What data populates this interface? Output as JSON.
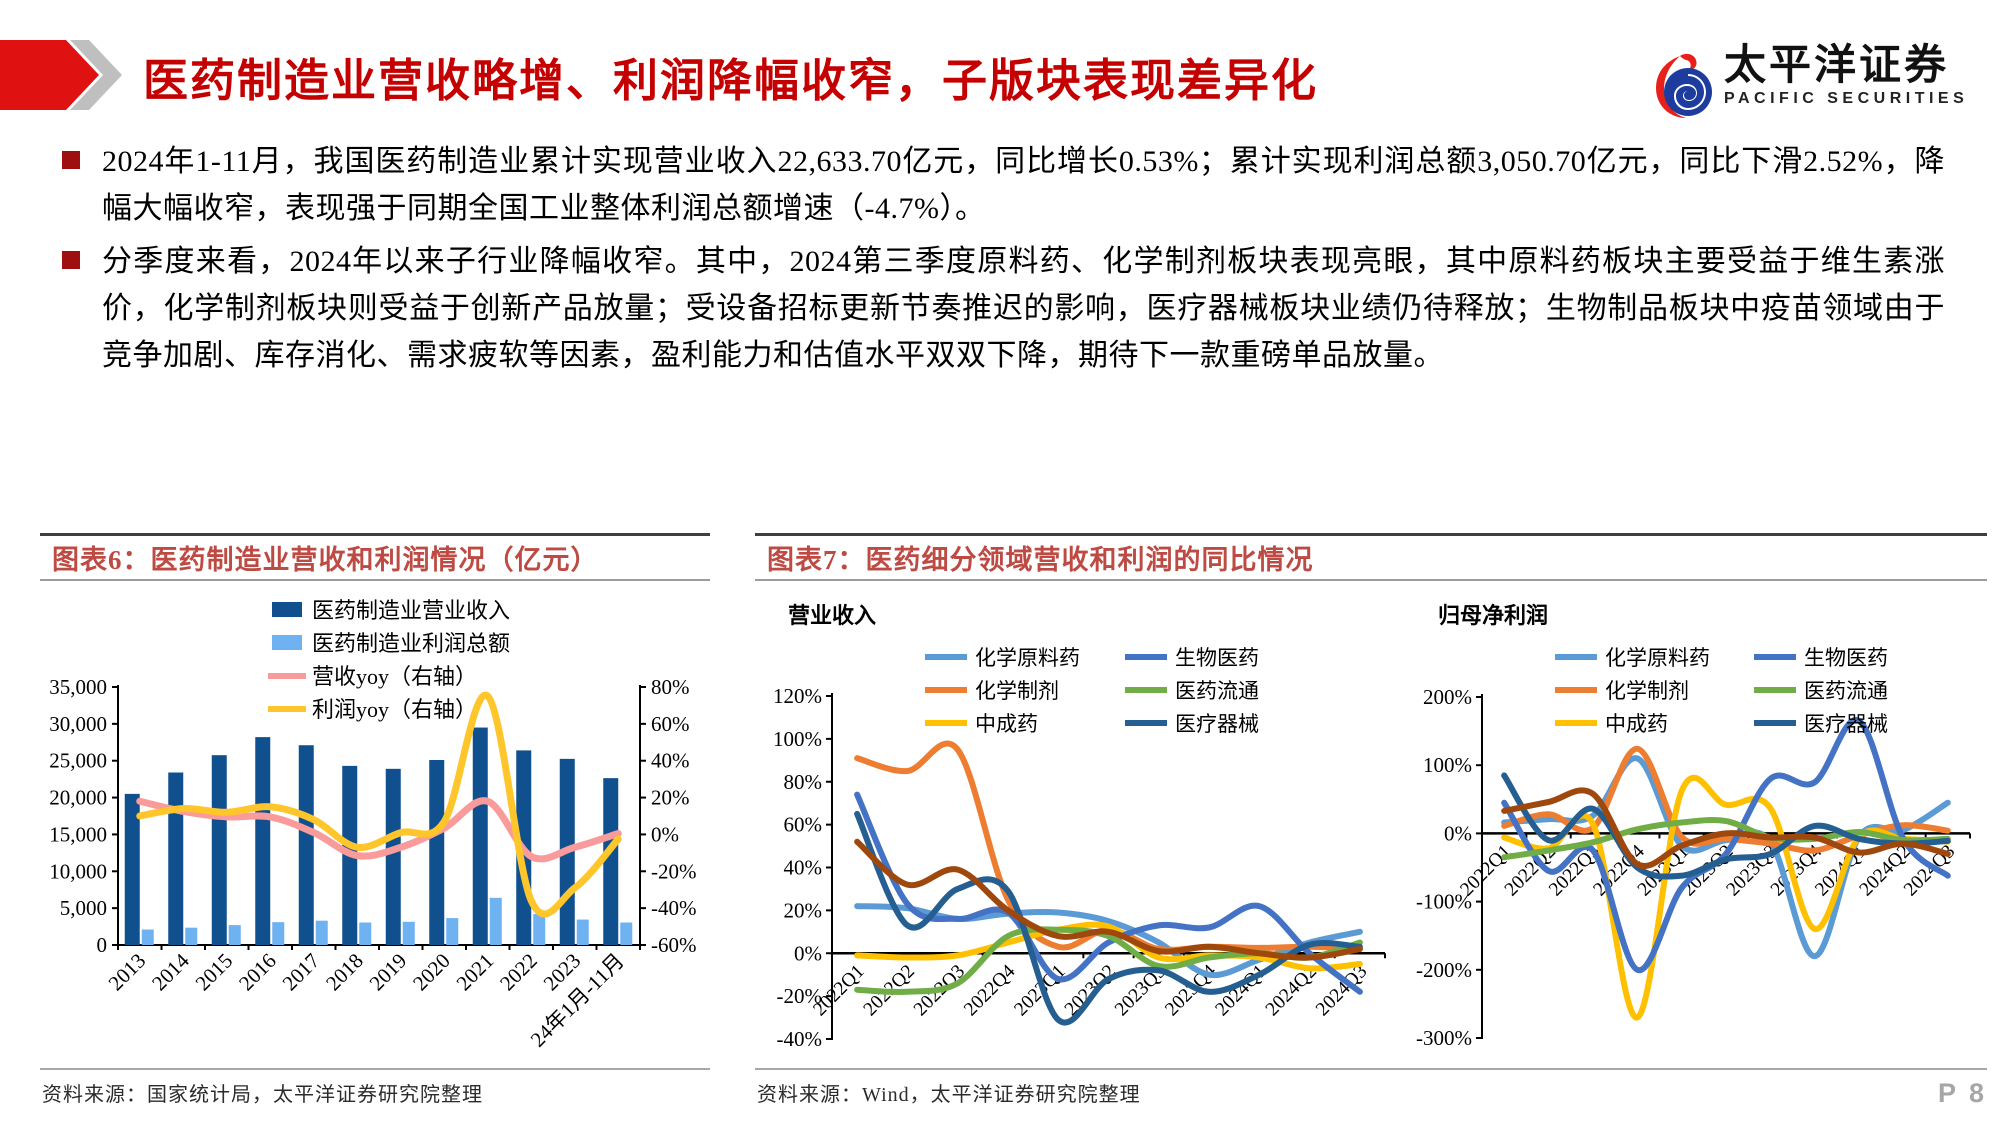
{
  "page": {
    "number": "P 8"
  },
  "header": {
    "title": "医药制造业营收略增、利润降幅收窄，子版块表现差异化",
    "logo_cn": "太平洋证券",
    "logo_en": "PACIFIC  SECURITIES",
    "accent_red": "#C40000",
    "logo_blue": "#1D3C9E",
    "logo_red": "#E8201A"
  },
  "bullets": [
    "2024年1-11月，我国医药制造业累计实现营业收入22,633.70亿元，同比增长0.53%；累计实现利润总额3,050.70亿元，同比下滑2.52%，降幅大幅收窄，表现强于同期全国工业整体利润总额增速（-4.7%）。",
    "分季度来看，2024年以来子行业降幅收窄。其中，2024第三季度原料药、化学制剂板块表现亮眼，其中原料药板块主要受益于维生素涨价，化学制剂板块则受益于创新产品放量；受设备招标更新节奏推迟的影响，医疗器械板块业绩仍待释放；生物制品板块中疫苗领域由于竞争加剧、库存消化、需求疲软等因素，盈利能力和估值水平双双下降，期待下一款重磅单品放量。"
  ],
  "figure6": {
    "caption": "图表6：医药制造业营收和利润情况（亿元）",
    "source": "资料来源：国家统计局，太平洋证券研究院整理"
  },
  "figure7": {
    "caption": "图表7：医药细分领域营收和利润的同比情况",
    "source": "资料来源：Wind，太平洋证券研究院整理"
  },
  "chart_data": [
    {
      "id": "fig6",
      "type": "combo bar+line, dual axis",
      "title": "图表6：医药制造业营收和利润情况（亿元）",
      "categories": [
        "2013",
        "2014",
        "2015",
        "2016",
        "2017",
        "2018",
        "2019",
        "2020",
        "2021",
        "2022",
        "2023",
        "24年1月-11月"
      ],
      "bar_series": [
        {
          "name": "医药制造业营业收入",
          "color": "#10508E",
          "values": [
            20500,
            23400,
            25750,
            28200,
            27100,
            24300,
            23900,
            25100,
            29500,
            26400,
            25250,
            22634
          ]
        },
        {
          "name": "医药制造业利润总额",
          "color": "#6EB2F2",
          "values": [
            2100,
            2350,
            2700,
            3100,
            3300,
            3050,
            3150,
            3650,
            6400,
            4200,
            3450,
            3051
          ]
        }
      ],
      "line_series": [
        {
          "name": "营收yoy（右轴）",
          "color": "#F99B9B",
          "axis": "right",
          "values": [
            18,
            12.5,
            9.5,
            9.5,
            1,
            -11.5,
            -7,
            3.5,
            18,
            -12,
            -7,
            0.5
          ]
        },
        {
          "name": "利润yoy（右轴）",
          "color": "#FFC62C",
          "axis": "right",
          "values": [
            10,
            14,
            12,
            15,
            8,
            -7,
            1,
            7,
            75,
            -36,
            -29,
            -2.5
          ]
        }
      ],
      "left_axis": {
        "min": 0,
        "max": 35000,
        "tick_labels": [
          "0",
          "5,000",
          "10,000",
          "15,000",
          "20,000",
          "25,000",
          "30,000",
          "35,000"
        ]
      },
      "right_axis": {
        "min": -60,
        "max": 80,
        "tick_labels": [
          "-60%",
          "-40%",
          "-20%",
          "0%",
          "20%",
          "40%",
          "60%",
          "80%"
        ]
      },
      "grid": false,
      "legend_position": "top"
    },
    {
      "id": "fig7l",
      "type": "line",
      "title": "营业收入",
      "categories": [
        "2022Q1",
        "2022Q2",
        "2022Q3",
        "2022Q4",
        "2023Q1",
        "2023Q2",
        "2023Q3",
        "2023Q4",
        "2024Q1",
        "2024Q2",
        "2024Q3"
      ],
      "ylim": [
        -40,
        120
      ],
      "ytick_labels": [
        "120%",
        "100%",
        "80%",
        "60%",
        "40%",
        "20%",
        "0%",
        "-20%",
        "-40%"
      ],
      "series": [
        {
          "name": "化学原料药",
          "color": "#5B9BD5",
          "in_legend": true,
          "values": [
            22,
            21,
            16,
            18.5,
            19,
            15,
            5,
            -10,
            -3,
            5,
            10
          ]
        },
        {
          "name": "化学制剂",
          "color": "#ED7D31",
          "in_legend": true,
          "values": [
            91,
            85,
            95,
            25,
            3,
            11,
            2,
            3,
            2.5,
            3,
            2
          ]
        },
        {
          "name": "中成药",
          "color": "#FFC000",
          "in_legend": true,
          "values": [
            -1,
            -2,
            -1,
            5,
            11,
            12.5,
            -2,
            -1,
            -2,
            -7,
            -5
          ]
        },
        {
          "name": "生物医药",
          "color": "#4472C4",
          "in_legend": true,
          "values": [
            74,
            23,
            16,
            19,
            -12,
            5,
            13,
            12,
            22,
            0,
            -18
          ]
        },
        {
          "name": "医药流通",
          "color": "#70AD47",
          "in_legend": true,
          "values": [
            -17,
            -18,
            -14,
            8,
            11,
            8,
            -6,
            -2,
            0,
            -2,
            5
          ]
        },
        {
          "name": "医疗器械",
          "color": "#255E91",
          "in_legend": true,
          "values": [
            65,
            13,
            30,
            29,
            -31,
            -12,
            -8,
            -18,
            -10,
            4,
            3
          ]
        },
        {
          "name": "",
          "color": "#9E480E",
          "in_legend": false,
          "values": [
            52,
            32,
            39,
            20,
            8,
            10,
            1,
            3,
            0,
            -2,
            2
          ]
        }
      ],
      "grid": false,
      "legend_position": "top"
    },
    {
      "id": "fig7r",
      "type": "line",
      "title": "归母净利润",
      "categories": [
        "2022Q1",
        "2022Q2",
        "2022Q3",
        "2022Q4",
        "2023Q1",
        "2023Q2",
        "2023Q3",
        "2023Q4",
        "2024Q1",
        "2024Q2",
        "2024Q3"
      ],
      "ylim": [
        -300,
        200
      ],
      "ytick_labels": [
        "200%",
        "100%",
        "0%",
        "-100%",
        "-200%",
        "-300%"
      ],
      "series": [
        {
          "name": "化学原料药",
          "color": "#5B9BD5",
          "in_legend": true,
          "values": [
            16,
            21,
            26,
            110,
            -18,
            -10,
            -12,
            -180,
            -5,
            5,
            45
          ]
        },
        {
          "name": "化学制剂",
          "color": "#ED7D31",
          "in_legend": true,
          "values": [
            11,
            28,
            8,
            124,
            -5,
            -8,
            -15,
            -25,
            -3,
            12,
            4
          ]
        },
        {
          "name": "中成药",
          "color": "#FFC000",
          "in_legend": true,
          "values": [
            -6,
            -22,
            14,
            -270,
            62,
            42,
            37,
            -140,
            -5,
            -8,
            -12
          ]
        },
        {
          "name": "生物医药",
          "color": "#4472C4",
          "in_legend": true,
          "values": [
            45,
            -55,
            -25,
            -200,
            -80,
            -30,
            80,
            75,
            165,
            -8,
            -62
          ]
        },
        {
          "name": "医药流通",
          "color": "#70AD47",
          "in_legend": true,
          "values": [
            -35,
            -25,
            -13,
            6,
            16,
            18,
            -6,
            -8,
            2,
            -10,
            -8
          ]
        },
        {
          "name": "医疗器械",
          "color": "#255E91",
          "in_legend": true,
          "values": [
            85,
            -10,
            36,
            -50,
            -62,
            -38,
            -30,
            11,
            -8,
            -15,
            -11
          ]
        },
        {
          "name": "",
          "color": "#9E480E",
          "in_legend": false,
          "values": [
            33,
            46,
            58,
            -45,
            -18,
            0,
            -6,
            -6,
            -28,
            -15,
            -30
          ]
        }
      ],
      "grid": false,
      "legend_position": "top"
    }
  ]
}
